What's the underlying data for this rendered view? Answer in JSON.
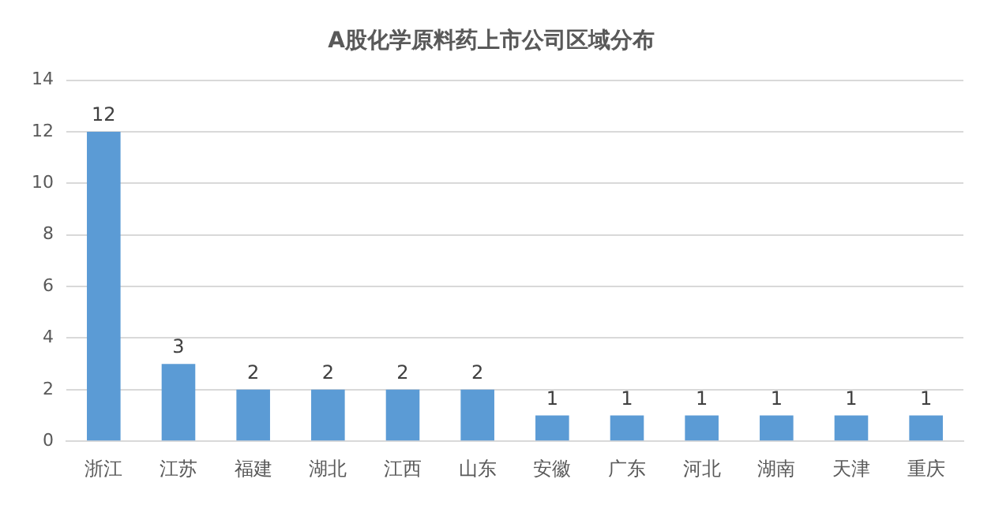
{
  "chart_data": {
    "type": "bar",
    "title": "A股化学原料药上市公司区域分布",
    "categories": [
      "浙江",
      "江苏",
      "福建",
      "湖北",
      "江西",
      "山东",
      "安徽",
      "广东",
      "河北",
      "湖南",
      "天津",
      "重庆"
    ],
    "values": [
      12,
      3,
      2,
      2,
      2,
      2,
      1,
      1,
      1,
      1,
      1,
      1
    ],
    "color": "#5b9bd5",
    "ylim": [
      0,
      14
    ],
    "yticks": [
      0,
      2,
      4,
      6,
      8,
      10,
      12,
      14
    ],
    "grid": "y",
    "data_labels": true,
    "legend": false
  }
}
